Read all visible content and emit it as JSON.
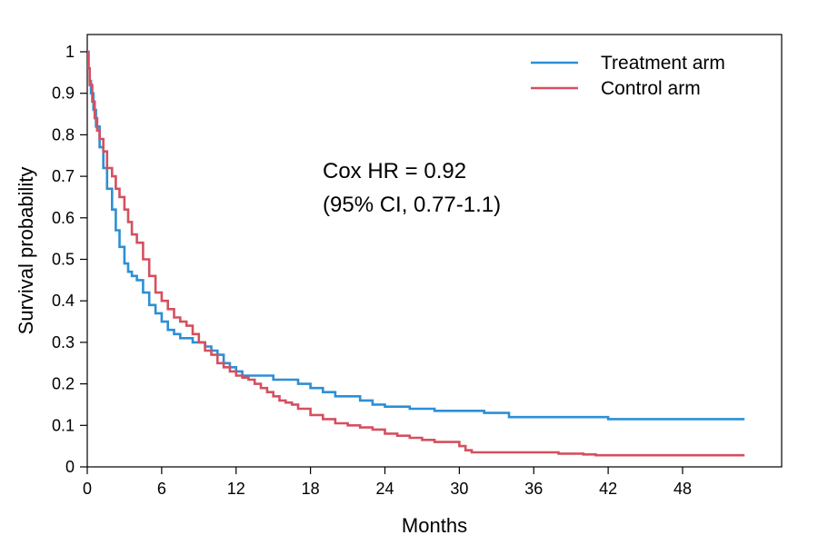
{
  "chart_data": {
    "type": "line",
    "xlabel": "Months",
    "ylabel": "Survival probability",
    "xlim": [
      0,
      58
    ],
    "ylim": [
      0,
      1.04
    ],
    "x_ticks": [
      0,
      6,
      12,
      18,
      24,
      30,
      36,
      42,
      48
    ],
    "y_ticks": [
      0,
      0.1,
      0.2,
      0.3,
      0.4,
      0.5,
      0.6,
      0.7,
      0.8,
      0.9,
      1
    ],
    "y_tick_labels": [
      "0",
      "0.1",
      "0.2",
      "0.3",
      "0.4",
      "0.5",
      "0.6",
      "0.7",
      "0.8",
      "0.9",
      "1"
    ],
    "step": true,
    "grid": false,
    "legend_position": "top-right",
    "annotation": [
      "Cox HR = 0.92",
      "(95% CI, 0.77-1.1)"
    ],
    "series": [
      {
        "name": "Treatment arm",
        "color": "#2c8fd6",
        "x": [
          0,
          0.1,
          0.2,
          0.3,
          0.5,
          0.7,
          1.0,
          1.3,
          1.6,
          2.0,
          2.3,
          2.6,
          3.0,
          3.3,
          3.6,
          4.0,
          4.5,
          5.0,
          5.5,
          6.0,
          6.5,
          7.0,
          7.5,
          8.0,
          8.5,
          9.0,
          9.5,
          10.0,
          10.5,
          11.0,
          11.5,
          12.0,
          12.5,
          13.0,
          14.0,
          15.0,
          16.0,
          17.0,
          18.0,
          19.0,
          20.0,
          21.0,
          22.0,
          23.0,
          24.0,
          25.0,
          26.0,
          27.0,
          28.0,
          30.0,
          32.0,
          33.0,
          34.0,
          36.0,
          38.0,
          40.0,
          42.0,
          45.0,
          48.0,
          50.0,
          52.0,
          53.0
        ],
        "y": [
          1.0,
          0.96,
          0.93,
          0.9,
          0.86,
          0.82,
          0.77,
          0.72,
          0.67,
          0.62,
          0.57,
          0.53,
          0.49,
          0.47,
          0.46,
          0.45,
          0.42,
          0.39,
          0.37,
          0.35,
          0.33,
          0.32,
          0.31,
          0.31,
          0.3,
          0.3,
          0.29,
          0.28,
          0.27,
          0.25,
          0.24,
          0.23,
          0.22,
          0.22,
          0.22,
          0.21,
          0.21,
          0.2,
          0.19,
          0.18,
          0.17,
          0.17,
          0.16,
          0.15,
          0.145,
          0.145,
          0.14,
          0.14,
          0.135,
          0.135,
          0.13,
          0.13,
          0.12,
          0.12,
          0.12,
          0.12,
          0.115,
          0.115,
          0.115,
          0.115,
          0.115,
          0.115
        ]
      },
      {
        "name": "Control arm",
        "color": "#d4505f",
        "x": [
          0,
          0.1,
          0.2,
          0.4,
          0.6,
          0.8,
          1.0,
          1.3,
          1.6,
          2.0,
          2.3,
          2.6,
          3.0,
          3.3,
          3.6,
          4.0,
          4.5,
          5.0,
          5.5,
          6.0,
          6.5,
          7.0,
          7.5,
          8.0,
          8.5,
          9.0,
          9.5,
          10.0,
          10.5,
          11.0,
          11.5,
          12.0,
          12.5,
          13.0,
          13.5,
          14.0,
          14.5,
          15.0,
          15.5,
          16.0,
          16.5,
          17.0,
          18.0,
          19.0,
          20.0,
          21.0,
          22.0,
          23.0,
          24.0,
          25.0,
          26.0,
          27.0,
          28.0,
          29.0,
          30.0,
          30.5,
          31.0,
          32.0,
          34.0,
          36.0,
          38.0,
          40.0,
          41.0,
          44.0,
          48.0,
          52.0,
          53.0
        ],
        "y": [
          1.0,
          0.96,
          0.92,
          0.88,
          0.84,
          0.81,
          0.79,
          0.76,
          0.72,
          0.7,
          0.67,
          0.65,
          0.62,
          0.59,
          0.56,
          0.54,
          0.5,
          0.46,
          0.42,
          0.4,
          0.38,
          0.36,
          0.35,
          0.34,
          0.32,
          0.3,
          0.28,
          0.27,
          0.25,
          0.24,
          0.23,
          0.22,
          0.215,
          0.21,
          0.2,
          0.19,
          0.18,
          0.17,
          0.16,
          0.155,
          0.15,
          0.14,
          0.125,
          0.115,
          0.105,
          0.1,
          0.095,
          0.09,
          0.08,
          0.075,
          0.07,
          0.065,
          0.06,
          0.06,
          0.05,
          0.04,
          0.035,
          0.035,
          0.035,
          0.035,
          0.032,
          0.03,
          0.028,
          0.028,
          0.028,
          0.028,
          0.028
        ]
      }
    ]
  }
}
